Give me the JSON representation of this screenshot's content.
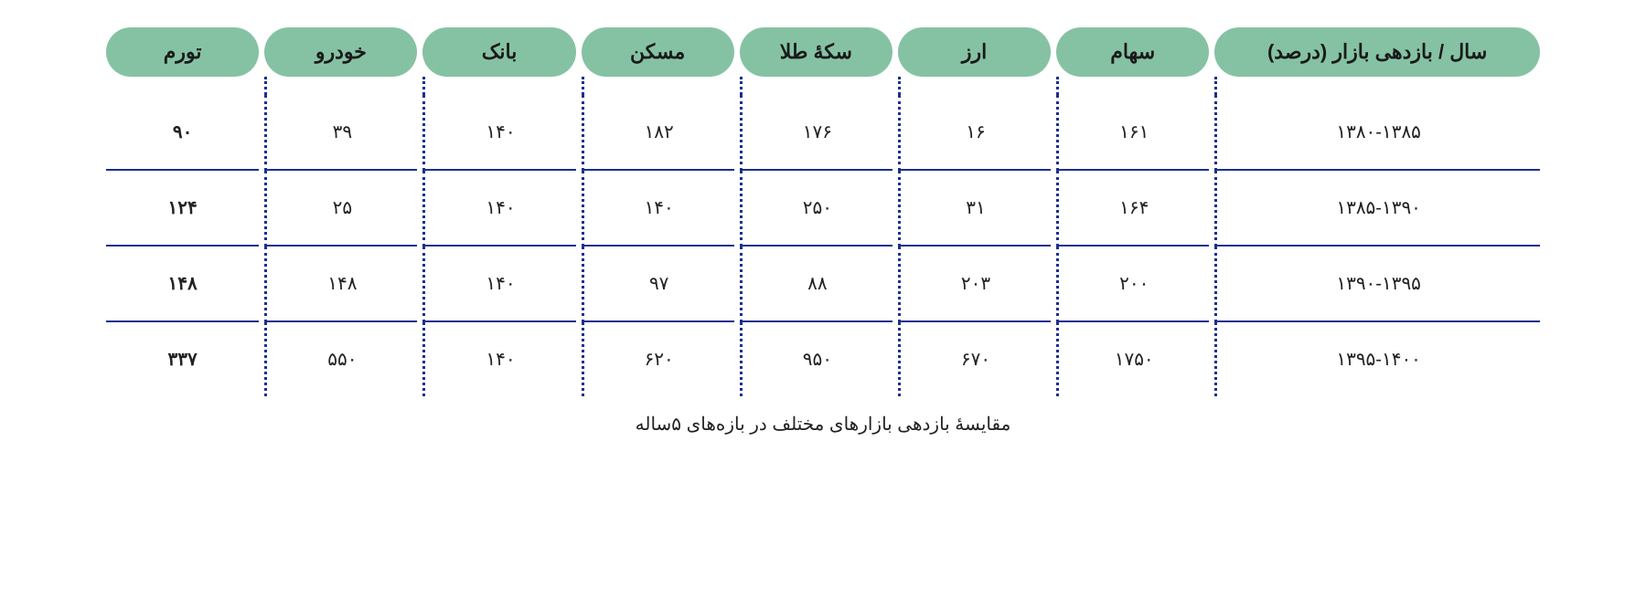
{
  "colors": {
    "pill_bg": "#85c2a3",
    "header_text": "#1a1a1a",
    "body_text": "#222222",
    "inflation_text": "#d01515",
    "row_line": "#1b2f8f",
    "dot_color": "#1b2f8f",
    "background": "#ffffff"
  },
  "table": {
    "type": "table",
    "direction": "rtl",
    "columns": [
      {
        "key": "year",
        "label": "سال / بازدهی بازار (درصد)"
      },
      {
        "key": "stocks",
        "label": "سهام"
      },
      {
        "key": "forex",
        "label": "ارز"
      },
      {
        "key": "goldcoin",
        "label": "سکۀ طلا"
      },
      {
        "key": "housing",
        "label": "مسکن"
      },
      {
        "key": "bank",
        "label": "بانک"
      },
      {
        "key": "car",
        "label": "خودرو"
      },
      {
        "key": "inflation",
        "label": "تورم",
        "highlight": true
      }
    ],
    "rows": [
      {
        "year": "۱۳۸۰-۱۳۸۵",
        "stocks": "۱۶۱",
        "forex": "۱۶",
        "goldcoin": "۱۷۶",
        "housing": "۱۸۲",
        "bank": "۱۴۰",
        "car": "۳۹",
        "inflation": "۹۰"
      },
      {
        "year": "۱۳۸۵-۱۳۹۰",
        "stocks": "۱۶۴",
        "forex": "۳۱",
        "goldcoin": "۲۵۰",
        "housing": "۱۴۰",
        "bank": "۱۴۰",
        "car": "۲۵",
        "inflation": "۱۲۴"
      },
      {
        "year": "۱۳۹۰-۱۳۹۵",
        "stocks": "۲۰۰",
        "forex": "۲۰۳",
        "goldcoin": "۸۸",
        "housing": "۹۷",
        "bank": "۱۴۰",
        "car": "۱۴۸",
        "inflation": "۱۴۸"
      },
      {
        "year": "۱۳۹۵-۱۴۰۰",
        "stocks": "۱۷۵۰",
        "forex": "۶۷۰",
        "goldcoin": "۹۵۰",
        "housing": "۶۲۰",
        "bank": "۱۴۰",
        "car": "۵۵۰",
        "inflation": "۳۳۷"
      }
    ],
    "caption": "مقایسۀ بازدهی بازارهای مختلف در بازه‌های ۵ساله",
    "header_fontsize": 22,
    "body_fontsize": 20,
    "pill_radius": 30
  }
}
